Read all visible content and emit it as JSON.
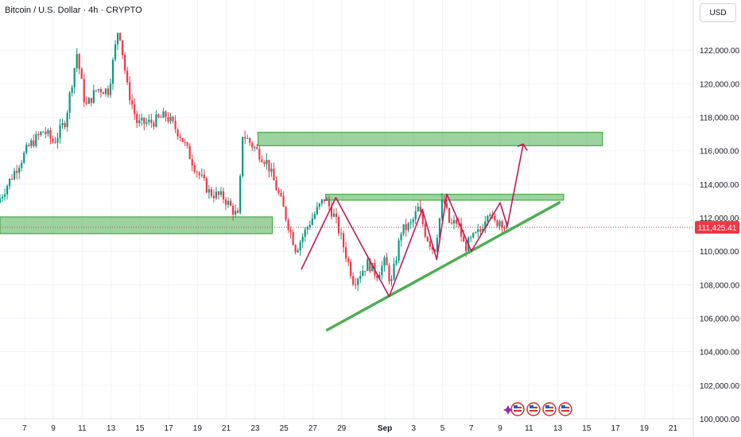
{
  "header": {
    "symbol": "Bitcoin / U.S. Dollar",
    "interval": "4h",
    "exchange": "CRYPTO",
    "currency_button": "USD"
  },
  "chart_data": {
    "type": "candlestick",
    "y_axis": {
      "range": [
        100000,
        125000
      ],
      "tick_labels": [
        "100,000.00",
        "102,000.00",
        "104,000.00",
        "106,000.00",
        "108,000.00",
        "110,000.00",
        "112,000.00",
        "114,000.00",
        "116,000.00",
        "118,000.00",
        "120,000.00",
        "122,000.00"
      ],
      "tick_values": [
        100000,
        102000,
        104000,
        106000,
        108000,
        110000,
        112000,
        114000,
        116000,
        118000,
        120000,
        122000
      ]
    },
    "x_axis": {
      "tick_labels": [
        "7",
        "9",
        "11",
        "13",
        "15",
        "17",
        "19",
        "21",
        "23",
        "25",
        "27",
        "29",
        "Sep",
        "3",
        "5",
        "7",
        "9",
        "11",
        "13",
        "15",
        "17",
        "19",
        "21"
      ],
      "tick_days": [
        7,
        9,
        11,
        13,
        15,
        17,
        19,
        21,
        23,
        25,
        27,
        29,
        32,
        34,
        36,
        38,
        40,
        42,
        44,
        46,
        48,
        50,
        52
      ],
      "range_days": [
        5.3,
        53.4
      ]
    },
    "last_price": {
      "value": 111425.41,
      "label": "111,425.41",
      "color": "#f23645"
    },
    "colors": {
      "up": "#089981",
      "down": "#f23645",
      "zone": "#4caf50",
      "pattern": "#c2185b"
    },
    "price_path": [
      [
        5.3,
        112900
      ],
      [
        6.5,
        114800
      ],
      [
        7.5,
        116300
      ],
      [
        8.5,
        117200
      ],
      [
        9.2,
        116500
      ],
      [
        10,
        117800
      ],
      [
        10.8,
        121800
      ],
      [
        11.4,
        118600
      ],
      [
        12.2,
        119700
      ],
      [
        13,
        119600
      ],
      [
        13.7,
        123500
      ],
      [
        14.3,
        119800
      ],
      [
        15,
        117600
      ],
      [
        16,
        117700
      ],
      [
        17,
        118100
      ],
      [
        18,
        116900
      ],
      [
        19,
        115000
      ],
      [
        20,
        113500
      ],
      [
        21,
        113200
      ],
      [
        22,
        112000
      ],
      [
        22.3,
        117000
      ],
      [
        23,
        116300
      ],
      [
        24,
        115300
      ],
      [
        25,
        112900
      ],
      [
        26,
        110100
      ],
      [
        27,
        111800
      ],
      [
        28,
        113200
      ],
      [
        28.7,
        112000
      ],
      [
        29.2,
        110600
      ],
      [
        30,
        108200
      ],
      [
        31,
        109300
      ],
      [
        31.6,
        108600
      ],
      [
        32.2,
        109400
      ],
      [
        32.6,
        108000
      ],
      [
        33.3,
        111200
      ],
      [
        34,
        111600
      ],
      [
        34.5,
        112600
      ],
      [
        35,
        111000
      ],
      [
        35.6,
        110000
      ],
      [
        36.2,
        113200
      ],
      [
        36.7,
        111500
      ],
      [
        37.2,
        111800
      ],
      [
        37.7,
        110200
      ],
      [
        38.3,
        110800
      ],
      [
        38.8,
        111200
      ],
      [
        39.4,
        112700
      ],
      [
        39.7,
        111600
      ],
      [
        40.2,
        111900
      ],
      [
        40.5,
        111425
      ]
    ],
    "zones": [
      {
        "name": "support-zone",
        "d0": 5.3,
        "d1": 24.2,
        "p0": 111050,
        "p1": 112050
      },
      {
        "name": "target-zone",
        "d0": 23.2,
        "d1": 47.1,
        "p0": 116300,
        "p1": 117100
      },
      {
        "name": "neckline-zone",
        "d0": 27.9,
        "d1": 44.4,
        "p0": 113050,
        "p1": 113400
      }
    ],
    "trendline": {
      "d0": 28,
      "p0": 105300,
      "d1": 44.1,
      "p1": 112900
    },
    "pattern": [
      [
        26.2,
        108900
      ],
      [
        28.6,
        113200
      ],
      [
        32.3,
        107300
      ],
      [
        34.6,
        112500
      ],
      [
        35.6,
        109500
      ],
      [
        36.3,
        113400
      ],
      [
        38,
        110000
      ],
      [
        40,
        112900
      ],
      [
        40.5,
        111500
      ],
      [
        41.6,
        116400
      ]
    ],
    "arrowhead": {
      "d": 41.6,
      "p": 116400
    },
    "event_icons_count": 4
  }
}
